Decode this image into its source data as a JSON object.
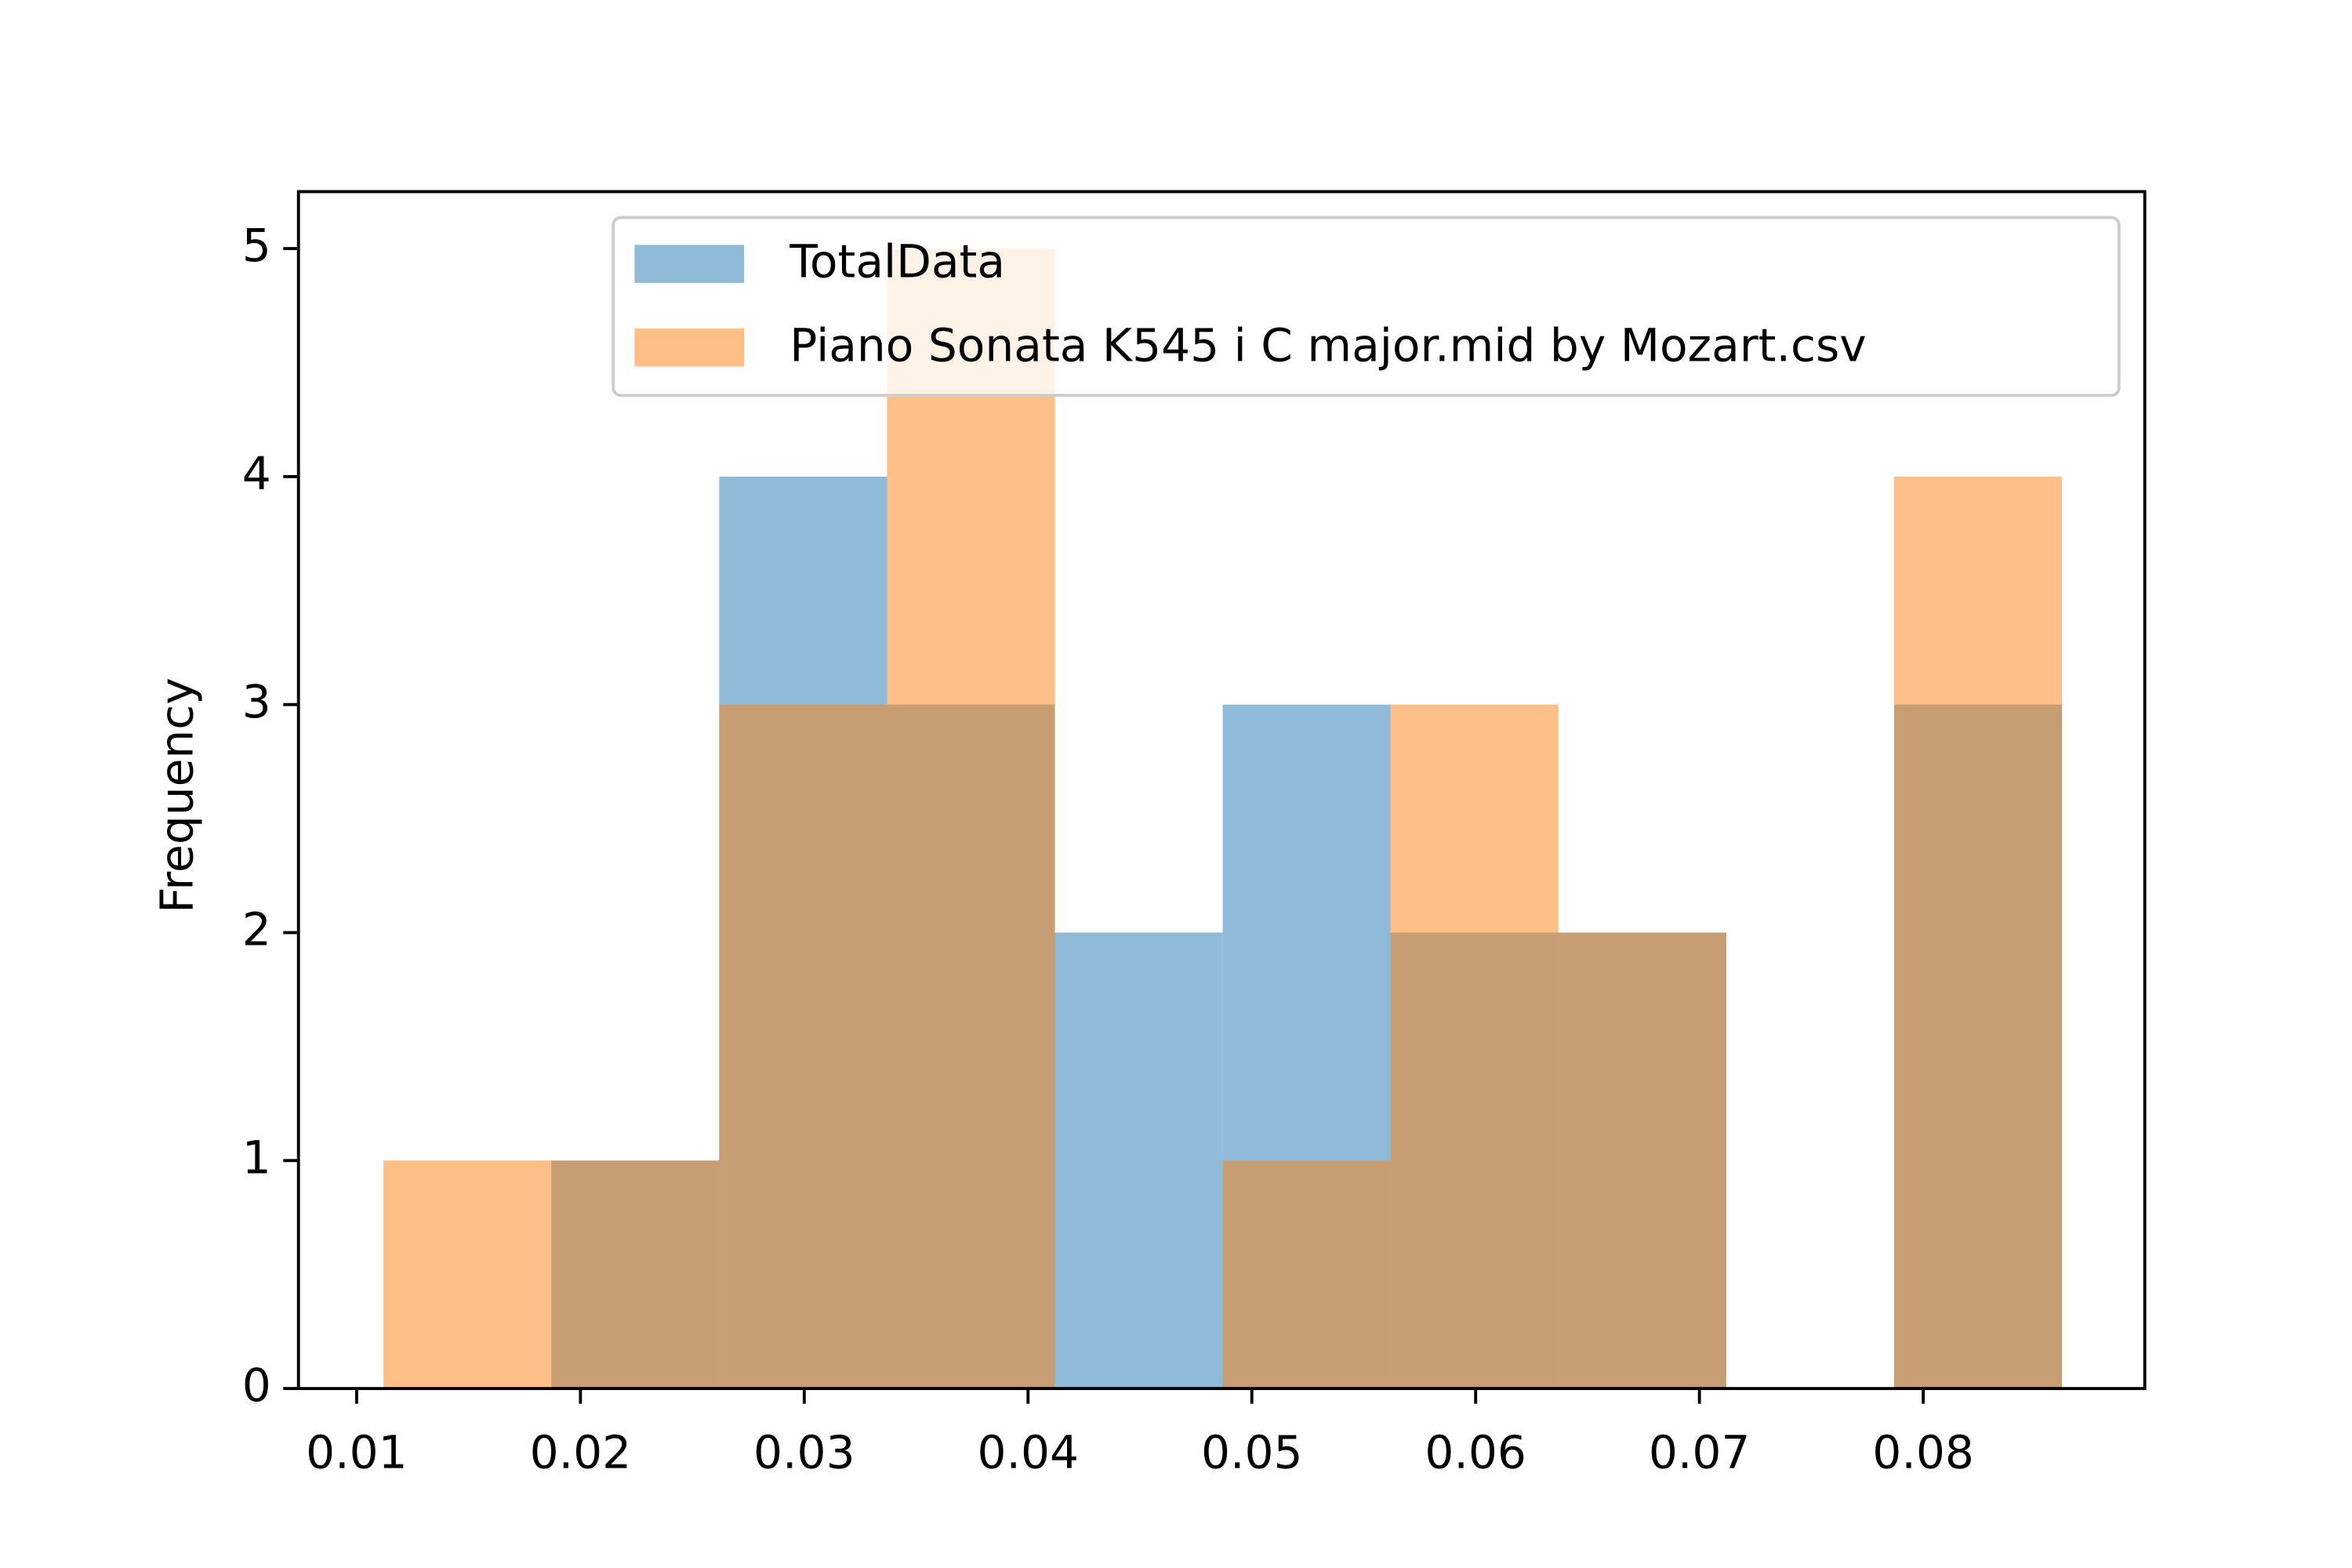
{
  "chart_data": {
    "type": "histogram",
    "y_label": "Frequency",
    "bins": [
      0.0112,
      0.0187,
      0.0262,
      0.0337,
      0.0412,
      0.0487,
      0.0562,
      0.0637,
      0.0712,
      0.0787,
      0.0862
    ],
    "series": [
      {
        "name": "TotalData",
        "color": "#1f77b4",
        "values": [
          0,
          1,
          4,
          3,
          2,
          3,
          2,
          2,
          0,
          3
        ]
      },
      {
        "name": "Piano Sonata K545 i C major.mid by Mozart.csv",
        "color": "#ff7f0e",
        "values": [
          1,
          1,
          3,
          5,
          0,
          1,
          3,
          2,
          0,
          4
        ]
      }
    ],
    "opacity": 0.5,
    "xlim": [
      0.0074,
      0.0899
    ],
    "ylim": [
      0,
      5.25
    ],
    "xticks": [
      0.01,
      0.02,
      0.03,
      0.04,
      0.05,
      0.06,
      0.07,
      0.08
    ],
    "yticks": [
      0,
      1,
      2,
      3,
      4,
      5
    ],
    "legend": "upper right"
  }
}
